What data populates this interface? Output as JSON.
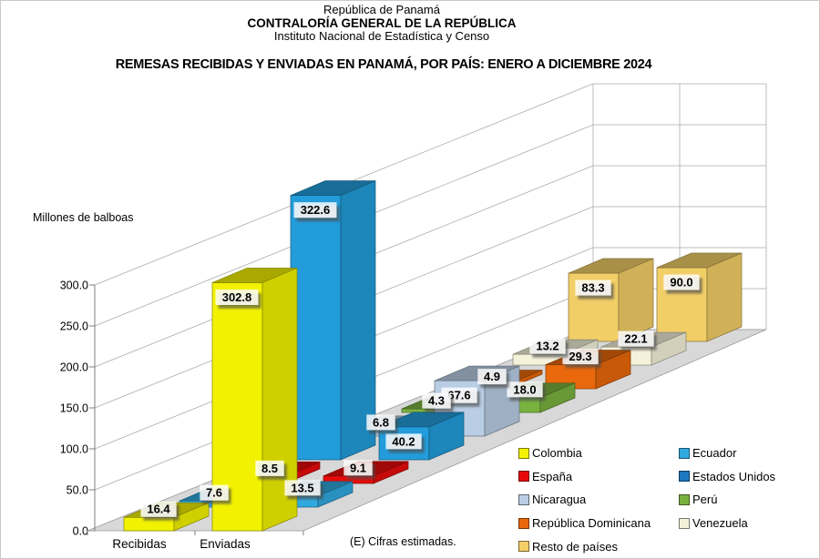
{
  "header": {
    "line1": "República de Panamá",
    "line2": "CONTRALORÍA GENERAL DE LA REPÚBLICA",
    "line3": "Instituto Nacional de Estadística y Censo"
  },
  "title": "REMESAS RECIBIDAS Y ENVIADAS EN PANAMÁ, POR PAÍS: ENERO A DICIEMBRE 2024",
  "note": "(E) Cifras estimadas.",
  "axis_title": "Millones de balboas",
  "chart_data": {
    "type": "bar",
    "projection": "3d",
    "title": "REMESAS RECIBIDAS Y ENVIADAS EN PANAMÁ, POR PAÍS: ENERO A DICIEMBRE 2024",
    "xlabel": "",
    "ylabel": "Millones de balboas",
    "ylim": [
      0,
      300
    ],
    "ytick_step": 50,
    "yticks": [
      "0.0",
      "50.0",
      "100.0",
      "150.0",
      "200.0",
      "250.0",
      "300.0"
    ],
    "grid": true,
    "legend_position": "bottom-right",
    "categories": [
      "Recibidas",
      "Enviadas"
    ],
    "series": [
      {
        "name": "Colombia",
        "color": "#F2F200",
        "values": [
          16.4,
          302.8
        ],
        "labels": [
          "16.4",
          "302.8"
        ]
      },
      {
        "name": "Ecuador",
        "color": "#2FA9DF",
        "values": [
          7.6,
          13.5
        ],
        "labels": [
          "7.6",
          "13.5"
        ]
      },
      {
        "name": "España",
        "color": "#E60B0B",
        "values": [
          8.5,
          9.1
        ],
        "labels": [
          "8.5",
          "9.1"
        ]
      },
      {
        "name": "Estados Unidos",
        "color": "#229CDA",
        "legend_color": "#1C78C0",
        "values": [
          322.6,
          40.2
        ],
        "labels": [
          "322.6",
          "40.2"
        ]
      },
      {
        "name": "Nicaragua",
        "color": "#B9CDE4",
        "values": [
          6.8,
          67.6
        ],
        "labels": [
          "6.8",
          "67.6"
        ]
      },
      {
        "name": "Perú",
        "color": "#79B23F",
        "values": [
          4.3,
          18.0
        ],
        "labels": [
          "4.3",
          "18.0"
        ]
      },
      {
        "name": "República Dominicana",
        "color": "#E8680B",
        "values": [
          4.9,
          29.3
        ],
        "labels": [
          "4.9",
          "29.3"
        ]
      },
      {
        "name": "Venezuela",
        "color": "#F4F2DA",
        "values": [
          13.2,
          22.1
        ],
        "labels": [
          "13.2",
          "22.1"
        ]
      },
      {
        "name": "Resto de países",
        "color": "#F2CE67",
        "values": [
          83.3,
          90.0
        ],
        "labels": [
          "83.3",
          "90.0"
        ]
      }
    ]
  }
}
